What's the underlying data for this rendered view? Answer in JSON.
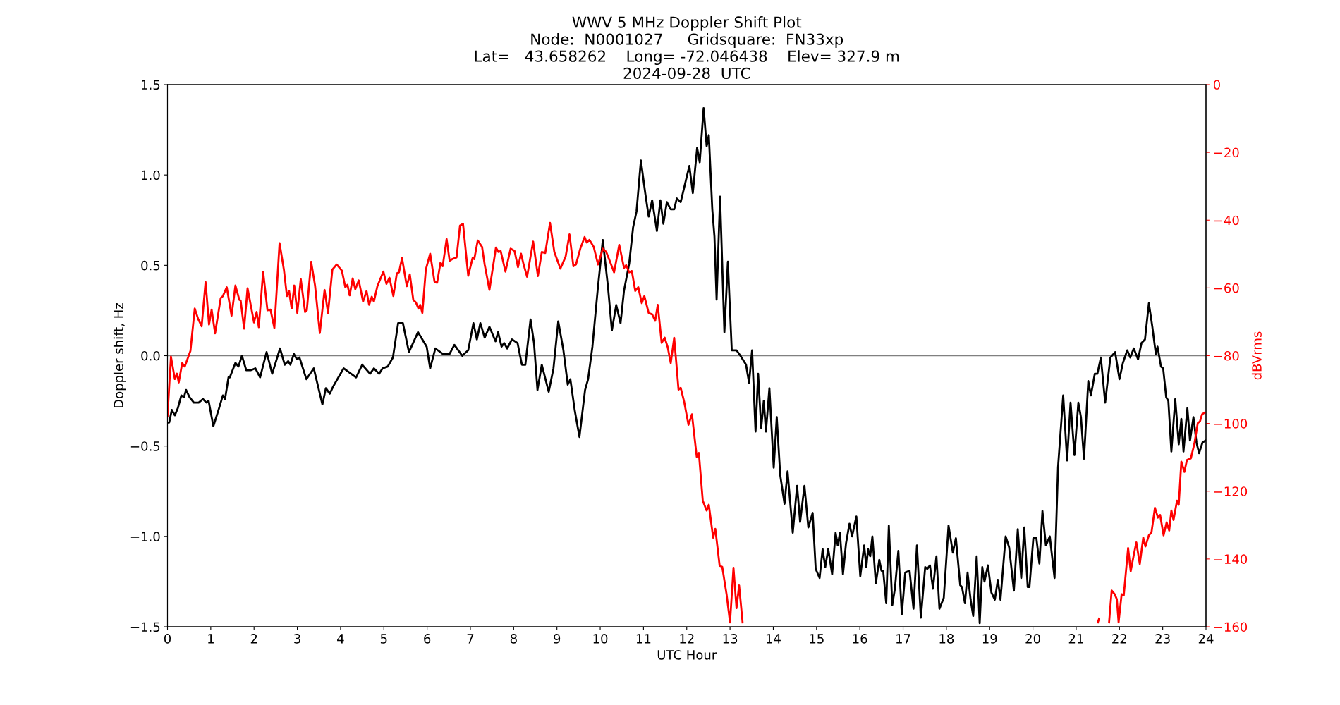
{
  "chart_data": {
    "type": "line",
    "title": "WWV 5 MHz Doppler Shift Plot\nNode:  N0001027     Gridsquare:  FN33xp\nLat=   43.658262    Long= -72.046438    Elev= 327.9 m\n2024-09-28  UTC",
    "xlabel": "UTC Hour",
    "ylabel": "Doppler shift, Hz",
    "y2label": "dBVrms",
    "xlim": [
      0,
      24
    ],
    "xticks": [
      0,
      1,
      2,
      3,
      4,
      5,
      6,
      7,
      8,
      9,
      10,
      11,
      12,
      13,
      14,
      15,
      16,
      17,
      18,
      19,
      20,
      21,
      22,
      23,
      24
    ],
    "ylim": [
      -1.5,
      1.5
    ],
    "yticks": [
      {
        "value": -1.5,
        "label": "−1.5"
      },
      {
        "value": -1.0,
        "label": "−1.0"
      },
      {
        "value": -0.5,
        "label": "−0.5"
      },
      {
        "value": 0.0,
        "label": "0.0"
      },
      {
        "value": 0.5,
        "label": "0.5"
      },
      {
        "value": 1.0,
        "label": "1.0"
      },
      {
        "value": 1.5,
        "label": "1.5"
      }
    ],
    "y2lim": [
      -160,
      0
    ],
    "y2ticks": [
      {
        "value": -160,
        "label": "−160"
      },
      {
        "value": -140,
        "label": "−140"
      },
      {
        "value": -120,
        "label": "−120"
      },
      {
        "value": -100,
        "label": "−100"
      },
      {
        "value": -80,
        "label": "−80"
      },
      {
        "value": -60,
        "label": "−60"
      },
      {
        "value": -40,
        "label": "−40"
      },
      {
        "value": -20,
        "label": "−20"
      },
      {
        "value": 0,
        "label": "0"
      }
    ],
    "grid": false,
    "legend": false,
    "marker": "none",
    "line_style": "solid",
    "ref_lines": [
      {
        "axis": "y",
        "value": 0,
        "label": null,
        "color": "#808080"
      }
    ],
    "series": [
      {
        "color": "#000000",
        "x": [
          0.0,
          0.04,
          0.1,
          0.17,
          0.24,
          0.32,
          0.38,
          0.43,
          0.51,
          0.61,
          0.72,
          0.82,
          0.9,
          0.95,
          1.06,
          1.18,
          1.28,
          1.33,
          1.41,
          1.44,
          1.57,
          1.64,
          1.72,
          1.82,
          1.93,
          2.03,
          2.14,
          2.29,
          2.42,
          2.6,
          2.71,
          2.79,
          2.84,
          2.92,
          2.99,
          3.05,
          3.21,
          3.38,
          3.48,
          3.58,
          3.66,
          3.75,
          3.83,
          3.95,
          4.07,
          4.36,
          4.5,
          4.68,
          4.77,
          4.89,
          4.97,
          5.09,
          5.21,
          5.33,
          5.44,
          5.58,
          5.79,
          5.99,
          6.07,
          6.19,
          6.36,
          6.52,
          6.63,
          6.81,
          6.95,
          7.07,
          7.15,
          7.23,
          7.33,
          7.44,
          7.58,
          7.64,
          7.72,
          7.78,
          7.85,
          7.96,
          8.09,
          8.19,
          8.27,
          8.39,
          8.47,
          8.55,
          8.65,
          8.81,
          8.92,
          9.03,
          9.15,
          9.25,
          9.31,
          9.41,
          9.52,
          9.65,
          9.72,
          9.82,
          9.94,
          10.06,
          10.18,
          10.27,
          10.37,
          10.47,
          10.55,
          10.67,
          10.76,
          10.84,
          10.94,
          11.04,
          11.12,
          11.2,
          11.31,
          11.39,
          11.46,
          11.54,
          11.63,
          11.71,
          11.77,
          11.86,
          11.94,
          12.06,
          12.14,
          12.24,
          12.3,
          12.39,
          12.46,
          12.51,
          12.59,
          12.64,
          12.69,
          12.77,
          12.87,
          12.95,
          13.04,
          13.15,
          13.24,
          13.37,
          13.44,
          13.51,
          13.59,
          13.65,
          13.72,
          13.78,
          13.83,
          13.91,
          14.01,
          14.08,
          14.16,
          14.26,
          14.33,
          14.45,
          14.55,
          14.62,
          14.72,
          14.81,
          14.91,
          14.98,
          15.07,
          15.14,
          15.2,
          15.27,
          15.36,
          15.44,
          15.49,
          15.54,
          15.61,
          15.68,
          15.76,
          15.82,
          15.92,
          16.01,
          16.1,
          16.15,
          16.19,
          16.24,
          16.29,
          16.37,
          16.45,
          16.5,
          16.54,
          16.61,
          16.67,
          16.75,
          16.81,
          16.89,
          16.97,
          17.05,
          17.15,
          17.24,
          17.32,
          17.41,
          17.51,
          17.56,
          17.62,
          17.69,
          17.77,
          17.84,
          17.94,
          18.05,
          18.15,
          18.22,
          18.32,
          18.36,
          18.43,
          18.49,
          18.56,
          18.62,
          18.7,
          18.77,
          18.83,
          18.88,
          18.96,
          19.04,
          19.12,
          19.19,
          19.25,
          19.37,
          19.45,
          19.56,
          19.65,
          19.73,
          19.8,
          19.88,
          19.92,
          20.01,
          20.08,
          20.15,
          20.22,
          20.3,
          20.39,
          20.5,
          20.58,
          20.7,
          20.79,
          20.87,
          20.96,
          21.05,
          21.11,
          21.18,
          21.28,
          21.34,
          21.43,
          21.49,
          21.57,
          21.67,
          21.79,
          21.9,
          22.0,
          22.08,
          22.18,
          22.25,
          22.33,
          22.43,
          22.51,
          22.59,
          22.68,
          22.76,
          22.84,
          22.88,
          22.96,
          23.01,
          23.08,
          23.13,
          23.2,
          23.29,
          23.37,
          23.43,
          23.48,
          23.57,
          23.63,
          23.71,
          23.78,
          23.84,
          23.92,
          23.99
        ],
        "values": [
          -0.37,
          -0.37,
          -0.3,
          -0.33,
          -0.29,
          -0.22,
          -0.23,
          -0.19,
          -0.23,
          -0.26,
          -0.26,
          -0.24,
          -0.26,
          -0.25,
          -0.39,
          -0.3,
          -0.22,
          -0.24,
          -0.12,
          -0.12,
          -0.04,
          -0.06,
          0.0,
          -0.08,
          -0.08,
          -0.07,
          -0.12,
          0.02,
          -0.1,
          0.04,
          -0.05,
          -0.03,
          -0.05,
          0.01,
          -0.02,
          -0.01,
          -0.13,
          -0.07,
          -0.17,
          -0.27,
          -0.18,
          -0.21,
          -0.17,
          -0.12,
          -0.07,
          -0.12,
          -0.05,
          -0.1,
          -0.07,
          -0.1,
          -0.07,
          -0.06,
          -0.01,
          0.18,
          0.18,
          0.02,
          0.13,
          0.05,
          -0.07,
          0.04,
          0.01,
          0.01,
          0.06,
          0.0,
          0.03,
          0.18,
          0.09,
          0.18,
          0.1,
          0.16,
          0.08,
          0.13,
          0.05,
          0.07,
          0.04,
          0.09,
          0.07,
          -0.05,
          -0.05,
          0.2,
          0.07,
          -0.19,
          -0.05,
          -0.2,
          -0.07,
          0.19,
          0.03,
          -0.16,
          -0.13,
          -0.3,
          -0.45,
          -0.19,
          -0.13,
          0.05,
          0.36,
          0.64,
          0.38,
          0.14,
          0.28,
          0.18,
          0.36,
          0.51,
          0.71,
          0.8,
          1.08,
          0.9,
          0.77,
          0.86,
          0.69,
          0.86,
          0.73,
          0.85,
          0.81,
          0.81,
          0.87,
          0.85,
          0.93,
          1.05,
          0.9,
          1.15,
          1.07,
          1.37,
          1.16,
          1.22,
          0.81,
          0.66,
          0.31,
          0.88,
          0.13,
          0.52,
          0.03,
          0.03,
          0.0,
          -0.05,
          -0.15,
          0.03,
          -0.42,
          -0.1,
          -0.4,
          -0.25,
          -0.42,
          -0.18,
          -0.62,
          -0.34,
          -0.66,
          -0.82,
          -0.64,
          -0.98,
          -0.72,
          -0.92,
          -0.72,
          -0.95,
          -0.87,
          -1.18,
          -1.23,
          -1.07,
          -1.17,
          -1.07,
          -1.21,
          -0.98,
          -1.05,
          -0.98,
          -1.21,
          -1.04,
          -0.93,
          -1.0,
          -0.89,
          -1.22,
          -1.05,
          -1.17,
          -1.07,
          -1.11,
          -1.0,
          -1.26,
          -1.13,
          -1.19,
          -1.19,
          -1.37,
          -0.94,
          -1.38,
          -1.29,
          -1.08,
          -1.43,
          -1.2,
          -1.19,
          -1.4,
          -1.05,
          -1.45,
          -1.17,
          -1.18,
          -1.16,
          -1.29,
          -1.11,
          -1.4,
          -1.34,
          -0.94,
          -1.09,
          -1.01,
          -1.27,
          -1.28,
          -1.37,
          -1.2,
          -1.35,
          -1.44,
          -1.11,
          -1.48,
          -1.17,
          -1.25,
          -1.16,
          -1.31,
          -1.35,
          -1.24,
          -1.35,
          -1.0,
          -1.06,
          -1.3,
          -0.96,
          -1.23,
          -0.95,
          -1.28,
          -1.28,
          -1.01,
          -1.01,
          -1.15,
          -0.86,
          -1.05,
          -1.0,
          -1.23,
          -0.62,
          -0.22,
          -0.58,
          -0.26,
          -0.55,
          -0.26,
          -0.34,
          -0.57,
          -0.14,
          -0.22,
          -0.1,
          -0.1,
          -0.01,
          -0.26,
          -0.01,
          0.02,
          -0.13,
          -0.04,
          0.03,
          -0.01,
          0.04,
          -0.02,
          0.07,
          0.09,
          0.29,
          0.16,
          0.01,
          0.05,
          -0.06,
          -0.07,
          -0.23,
          -0.25,
          -0.53,
          -0.24,
          -0.49,
          -0.35,
          -0.53,
          -0.29,
          -0.47,
          -0.34,
          -0.48,
          -0.54,
          -0.48,
          -0.47
        ]
      },
      {
        "color": "#ff0000",
        "axis": "y2",
        "x": [
          0.0,
          0.08,
          0.17,
          0.22,
          0.26,
          0.34,
          0.4,
          0.53,
          0.63,
          0.71,
          0.79,
          0.88,
          0.96,
          1.02,
          1.1,
          1.23,
          1.28,
          1.37,
          1.48,
          1.57,
          1.66,
          1.69,
          1.77,
          1.85,
          2.0,
          2.06,
          2.11,
          2.21,
          2.31,
          2.38,
          2.47,
          2.59,
          2.69,
          2.76,
          2.81,
          2.87,
          2.93,
          3.0,
          3.08,
          3.18,
          3.22,
          3.32,
          3.41,
          3.52,
          3.63,
          3.71,
          3.81,
          3.91,
          4.03,
          4.11,
          4.16,
          4.21,
          4.28,
          4.34,
          4.42,
          4.52,
          4.6,
          4.66,
          4.72,
          4.77,
          4.85,
          4.93,
          4.99,
          5.06,
          5.13,
          5.22,
          5.3,
          5.35,
          5.42,
          5.53,
          5.6,
          5.68,
          5.74,
          5.8,
          5.84,
          5.89,
          5.97,
          6.07,
          6.17,
          6.23,
          6.31,
          6.36,
          6.45,
          6.52,
          6.58,
          6.68,
          6.76,
          6.83,
          6.95,
          7.05,
          7.09,
          7.17,
          7.27,
          7.33,
          7.44,
          7.59,
          7.65,
          7.7,
          7.81,
          7.93,
          8.02,
          8.1,
          8.17,
          8.23,
          8.31,
          8.45,
          8.56,
          8.65,
          8.73,
          8.84,
          8.94,
          9.08,
          9.2,
          9.29,
          9.38,
          9.44,
          9.54,
          9.64,
          9.69,
          9.75,
          9.85,
          9.95,
          10.06,
          10.14,
          10.22,
          10.32,
          10.44,
          10.55,
          10.6,
          10.67,
          10.73,
          10.81,
          10.88,
          10.96,
          11.02,
          11.12,
          11.2,
          11.27,
          11.33,
          11.42,
          11.49,
          11.56,
          11.63,
          11.71,
          11.81,
          11.86,
          11.94,
          12.04,
          12.12,
          12.23,
          12.28,
          12.37,
          12.46,
          12.51,
          12.61,
          12.66,
          12.76,
          12.82,
          12.92,
          13.0,
          13.08,
          13.15,
          13.21,
          13.29,
          13.35,
          21.45,
          21.5,
          21.53,
          21.56,
          21.76,
          21.82,
          21.89,
          21.94,
          21.98,
          22.05,
          22.1,
          22.2,
          22.26,
          22.33,
          22.39,
          22.47,
          22.55,
          22.6,
          22.68,
          22.74,
          22.82,
          22.89,
          22.94,
          23.02,
          23.09,
          23.15,
          23.2,
          23.25,
          23.33,
          23.37,
          23.43,
          23.5,
          23.56,
          23.65,
          23.73,
          23.81,
          23.86,
          23.91,
          23.97
        ],
        "values": [
          -97.8,
          -80.3,
          -86.9,
          -85.3,
          -87.9,
          -82.2,
          -83.2,
          -78.6,
          -66.1,
          -69.2,
          -71.3,
          -58.3,
          -70.8,
          -66.4,
          -73.4,
          -63,
          -62.4,
          -59.8,
          -68.2,
          -59.3,
          -63.5,
          -63.7,
          -72,
          -60.1,
          -70.2,
          -67.1,
          -71.6,
          -55.2,
          -66.6,
          -66.4,
          -71.8,
          -46.8,
          -54.6,
          -62.4,
          -60.9,
          -66.1,
          -59.3,
          -67.4,
          -57.4,
          -67.1,
          -66.6,
          -52.3,
          -59.3,
          -73.3,
          -60.6,
          -67.4,
          -54.6,
          -53.1,
          -54.9,
          -59.8,
          -59.1,
          -62.2,
          -57.2,
          -60.4,
          -57.8,
          -64,
          -60.9,
          -65,
          -62.6,
          -64,
          -59.5,
          -57,
          -55.2,
          -58.8,
          -57,
          -62.4,
          -55.7,
          -55.4,
          -51.2,
          -59.5,
          -56,
          -63.5,
          -64.3,
          -66.1,
          -65,
          -67.4,
          -54.6,
          -49.9,
          -58.1,
          -58.5,
          -52.5,
          -53.6,
          -45.6,
          -52,
          -51.5,
          -51,
          -41.6,
          -41.1,
          -56.4,
          -51.2,
          -51.5,
          -46,
          -47.9,
          -53.1,
          -60.6,
          -48.1,
          -49.4,
          -49.1,
          -55.2,
          -48.4,
          -49.1,
          -53.9,
          -49.9,
          -53.1,
          -56.7,
          -46.3,
          -56.5,
          -49.4,
          -49.7,
          -40.8,
          -49.4,
          -54.3,
          -50.8,
          -44.2,
          -53.6,
          -53.1,
          -48.4,
          -45,
          -46.6,
          -45.8,
          -47.9,
          -53.1,
          -48.4,
          -49.4,
          -52,
          -55.4,
          -47.3,
          -54.1,
          -53.3,
          -55.4,
          -55,
          -60.9,
          -59.8,
          -64.5,
          -62.4,
          -67.4,
          -67.8,
          -69.7,
          -65,
          -76.2,
          -74.7,
          -77.5,
          -82.2,
          -74.7,
          -90,
          -89.5,
          -93.6,
          -100.4,
          -97.3,
          -109.8,
          -108.7,
          -122.8,
          -125.7,
          -124,
          -133.7,
          -131.1,
          -142,
          -142.3,
          -150.4,
          -158.7,
          -142.6,
          -154.5,
          -147.8,
          -158.7,
          null,
          null,
          -158.7,
          -157.6,
          null,
          -158.7,
          -149.3,
          -150.4,
          -151.9,
          -158.7,
          -150.4,
          -150.7,
          -136.8,
          -143.6,
          -138.9,
          -135.1,
          -141.5,
          -133.7,
          -136.3,
          -133,
          -132.2,
          -124.9,
          -127.8,
          -127,
          -133,
          -129.2,
          -131.6,
          -125.7,
          -128.5,
          -122.8,
          -124,
          -111.3,
          -114.3,
          -110.8,
          -110.3,
          -106.1,
          -99.9,
          -99.4,
          -97.3,
          -96.8
        ]
      }
    ]
  }
}
